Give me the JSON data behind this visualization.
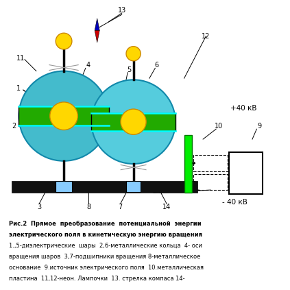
{
  "background_color": "#ffffff",
  "s1x": 0.22,
  "s1y": 0.6,
  "s1r": 0.155,
  "s2x": 0.46,
  "s2y": 0.58,
  "s2r": 0.145,
  "sphere1_color": "#44BBCC",
  "sphere2_color": "#55CCDD",
  "band_color": "#22AA00",
  "ball_color": "#FFD700",
  "ball_edge_color": "#CC8800",
  "shaft_color": "#000000",
  "base_color": "#111111",
  "bearing_color": "#88CCFF",
  "plate_color": "#00EE00",
  "box_color": "#ffffff",
  "compass_blue": "#0000BB",
  "compass_red": "#CC0000",
  "label_13": "13",
  "label_12": "12",
  "label_11": "11",
  "label_4": "4",
  "label_5": "5",
  "label_6": "6",
  "label_1": "1",
  "label_2": "2",
  "label_10": "10",
  "label_9": "9",
  "label_3": "3",
  "label_8": "8",
  "label_7": "7",
  "label_14": "14",
  "plus40kv": "+40 кВ",
  "minus40kv": "- 40 кВ",
  "caption_bold1": "Рис.2  Прямое  преобразование  потенциальной  энергии",
  "caption_bold2": "электрического поля в кинетическую энергию вращения",
  "caption3": "1.,5-диэлектрические  шары  2,6-металлические кольца  4- оси",
  "caption4": "вращения шаров  3,7-подшипники вращения 8-металлическое",
  "caption5": "основание  9.источник электрического поля  10.металлическая",
  "caption6": "пластина  11,12-неон. Лампочки  13. стрелка компаса 14-"
}
